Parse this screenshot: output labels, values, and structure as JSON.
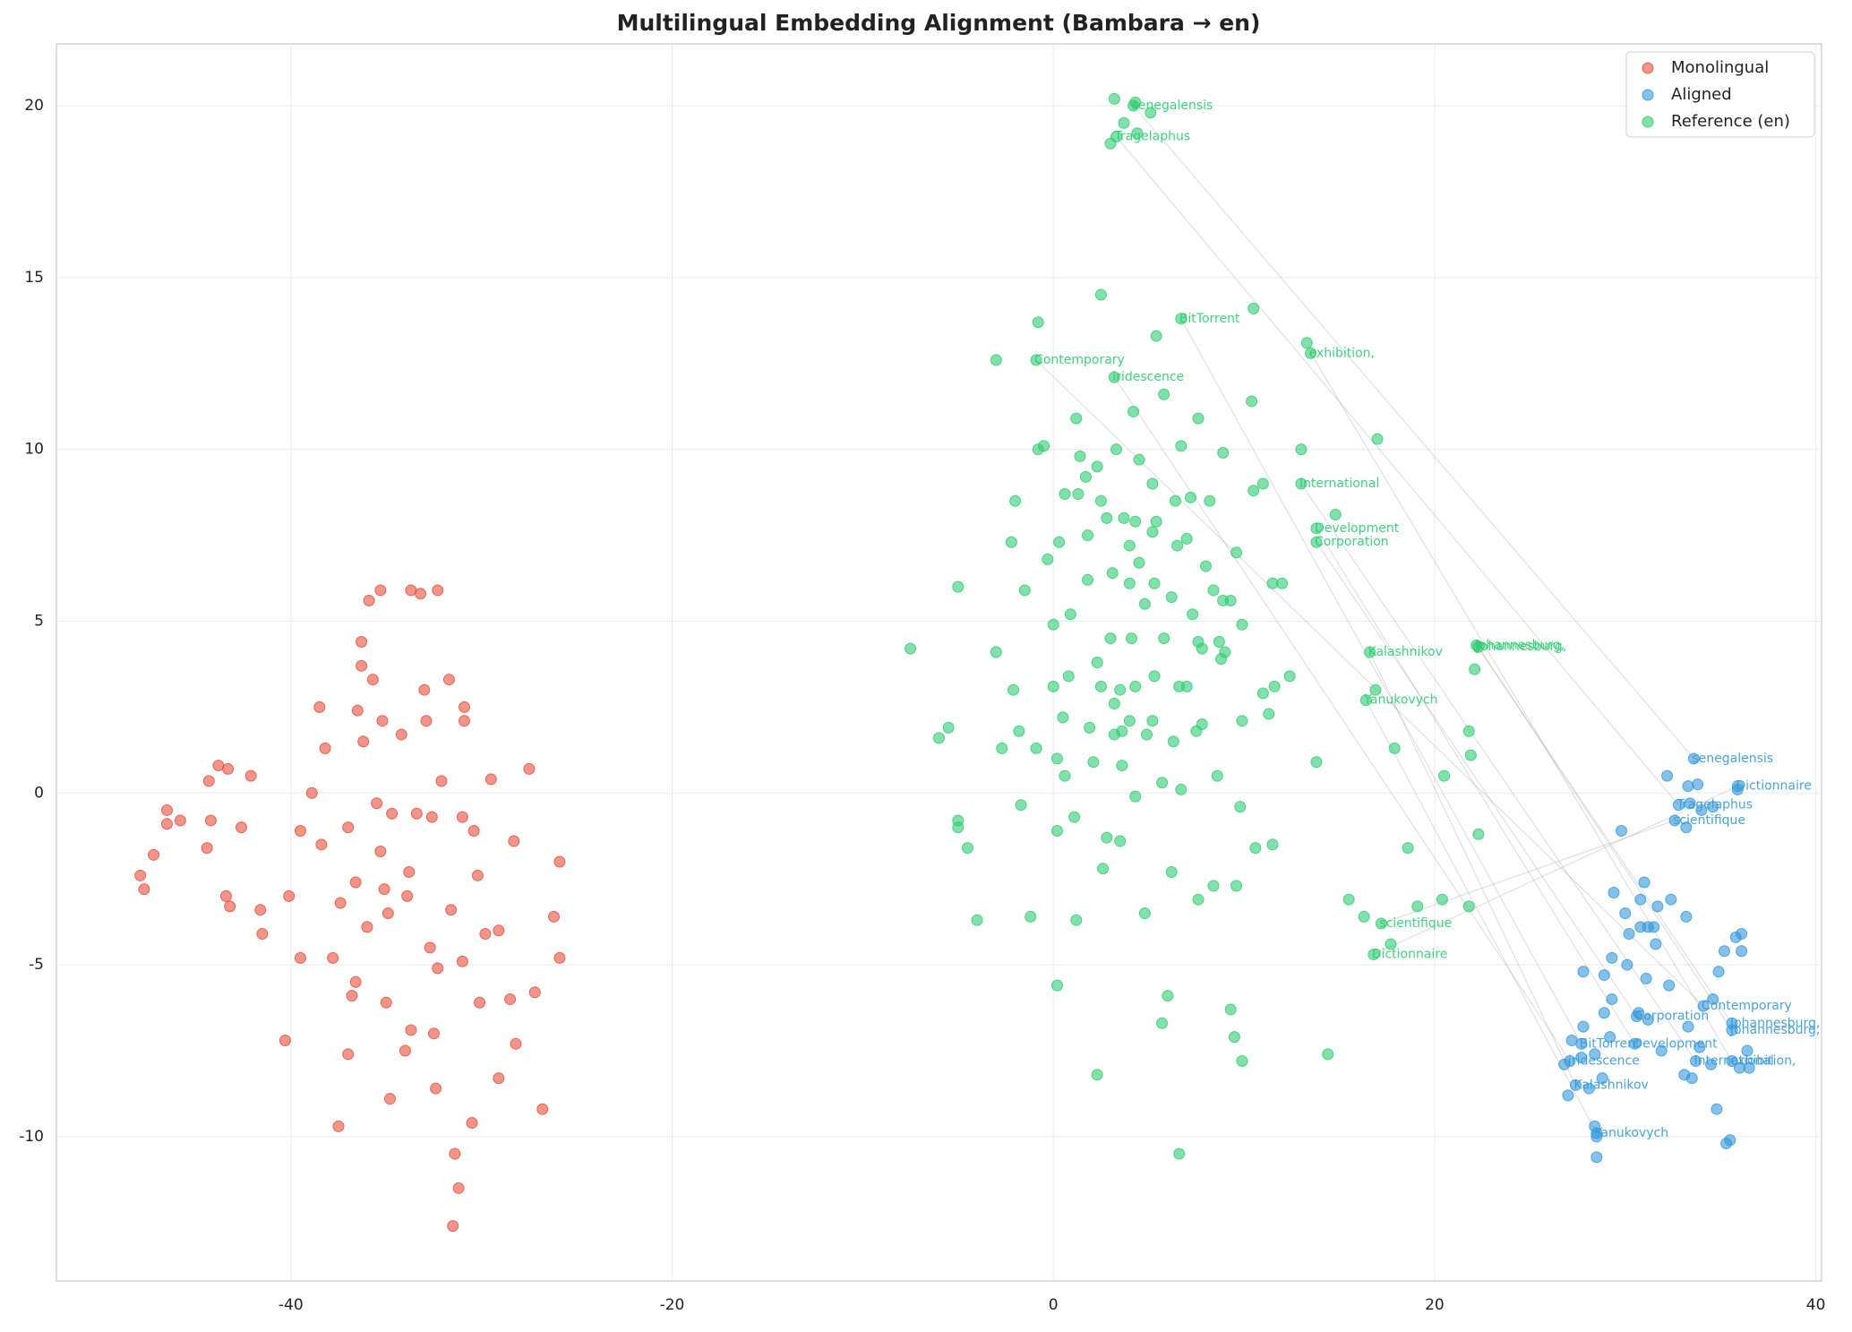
{
  "chart_data": {
    "type": "scatter",
    "title": "Multilingual Embedding Alignment (Bambara → en)",
    "xlim": [
      -52.3,
      40.3
    ],
    "ylim": [
      -14.2,
      21.8
    ],
    "xticks": [
      -40,
      -20,
      0,
      20,
      40
    ],
    "yticks": [
      -10,
      -5,
      0,
      5,
      10,
      15,
      20
    ],
    "grid": true,
    "legend": "upper right",
    "series": [
      {
        "name": "Monolingual",
        "color": "#e74c3c",
        "x": [
          -47.9,
          -47.7,
          -47.2,
          -46.5,
          -46.5,
          -45.8,
          -44.3,
          -43.8,
          -43.3,
          -44.4,
          -44.2,
          -43.4,
          -43.2,
          -42.6,
          -42.1,
          -41.6,
          -41.5,
          -40.3,
          -40.1,
          -39.5,
          -39.5,
          -38.9,
          -38.5,
          -38.2,
          -37.8,
          -37.4,
          -37.5,
          -37.0,
          -36.8,
          -36.6,
          -36.3,
          -36.3,
          -36.5,
          -36.2,
          -35.9,
          -35.7,
          -35.2,
          -35.3,
          -35.1,
          -35.0,
          -34.7,
          -34.8,
          -35.3,
          -34.2,
          -33.9,
          -33.7,
          -33.7,
          -33.2,
          -33.0,
          -32.9,
          -32.7,
          -32.5,
          -32.3,
          -32.1,
          -32.3,
          -31.7,
          -31.6,
          -31.4,
          -31.2,
          -31.5,
          -30.9,
          -30.9,
          -31.0,
          -30.5,
          -30.4,
          -30.1,
          -29.5,
          -29.1,
          -29.1,
          -28.5,
          -28.3,
          -27.5,
          -27.2,
          -26.8,
          -26.2,
          -25.9,
          -25.9,
          -33.4,
          -33.8,
          -35.5,
          -37.0,
          -36.0,
          -34.9,
          -32.6,
          -31.0,
          -29.8,
          -28.2,
          -30.2,
          -32.4,
          -34.0,
          -38.4,
          -36.6
        ],
        "y": [
          -2.4,
          -2.8,
          -1.8,
          -0.5,
          -0.9,
          -0.8,
          0.35,
          0.8,
          0.7,
          -1.6,
          -0.8,
          -3.0,
          -3.3,
          -1.0,
          0.5,
          -3.4,
          -4.1,
          -7.2,
          -3.0,
          -1.1,
          -4.8,
          0.0,
          2.5,
          1.3,
          -4.8,
          -3.2,
          -9.7,
          -7.6,
          -5.9,
          -5.5,
          4.4,
          3.7,
          2.4,
          1.5,
          5.6,
          3.3,
          2.1,
          -1.7,
          -2.8,
          -6.1,
          -0.6,
          -8.9,
          5.9,
          1.7,
          -3.0,
          -6.9,
          5.9,
          5.8,
          3.0,
          2.1,
          -4.5,
          -7.0,
          -5.1,
          0.35,
          5.9,
          3.3,
          -3.4,
          -10.5,
          -11.5,
          -12.6,
          2.1,
          2.5,
          -4.9,
          -9.6,
          -1.1,
          -6.1,
          0.4,
          -4.0,
          -8.3,
          -6.0,
          -1.4,
          0.7,
          -5.8,
          -9.2,
          -3.6,
          -2.0,
          -4.8,
          -0.6,
          -2.3,
          -0.3,
          -1.0,
          -3.9,
          -3.5,
          -0.7,
          -0.7,
          -4.1,
          -7.3,
          -2.4,
          -8.6,
          -7.5,
          -1.5,
          -2.6
        ]
      },
      {
        "name": "Aligned",
        "color": "#3498db",
        "x": [
          32.2,
          33.3,
          33.8,
          35.9,
          33.4,
          34.0,
          34.6,
          33.2,
          29.8,
          31.0,
          29.4,
          30.8,
          31.7,
          32.4,
          30.0,
          30.8,
          31.2,
          31.5,
          33.2,
          30.2,
          31.6,
          36.1,
          35.8,
          35.2,
          36.1,
          29.3,
          30.1,
          27.8,
          28.9,
          31.1,
          32.3,
          34.9,
          34.6,
          28.9,
          29.3,
          30.7,
          31.2,
          33.3,
          27.8,
          27.2,
          29.2,
          31.9,
          33.9,
          36.4,
          28.4,
          26.8,
          27.7,
          33.1,
          33.5,
          34.5,
          36.0,
          36.5,
          28.8,
          28.1,
          27.0,
          34.8,
          28.4,
          28.5,
          35.5,
          35.3,
          28.5
        ],
        "y": [
          0.5,
          0.2,
          0.25,
          0.1,
          -0.3,
          -0.5,
          -0.4,
          -1.0,
          -1.1,
          -2.6,
          -2.9,
          -3.1,
          -3.3,
          -3.1,
          -3.5,
          -3.9,
          -3.9,
          -3.9,
          -3.6,
          -4.1,
          -4.4,
          -4.1,
          -4.2,
          -4.6,
          -4.6,
          -4.8,
          -5.0,
          -5.2,
          -5.3,
          -5.4,
          -5.6,
          -5.2,
          -6.0,
          -6.4,
          -6.0,
          -6.4,
          -6.6,
          -6.8,
          -6.8,
          -7.2,
          -7.1,
          -7.5,
          -7.4,
          -7.5,
          -7.6,
          -7.9,
          -7.7,
          -8.2,
          -8.3,
          -7.9,
          -8.0,
          -8.0,
          -8.3,
          -8.6,
          -8.8,
          -9.2,
          -9.7,
          -10.0,
          -10.1,
          -10.2,
          -10.6
        ]
      },
      {
        "name": "Reference (en)",
        "color": "#2ecc71",
        "x": [
          3.2,
          4.3,
          5.1,
          3.7,
          4.4,
          3.0,
          2.5,
          10.5,
          -0.8,
          5.4,
          13.3,
          -3.0,
          5.8,
          4.2,
          10.4,
          -0.5,
          1.2,
          7.6,
          17.0,
          6.7,
          13.0,
          1.4,
          3.3,
          4.5,
          8.9,
          -0.8,
          2.3,
          1.7,
          5.2,
          11.0,
          10.5,
          0.6,
          1.3,
          -2.0,
          2.5,
          6.4,
          7.2,
          8.2,
          2.8,
          3.7,
          4.3,
          5.4,
          14.8,
          5.2,
          1.8,
          -2.2,
          0.3,
          4.0,
          6.5,
          7.0,
          9.6,
          -0.3,
          4.5,
          3.1,
          1.8,
          4.0,
          5.3,
          8.0,
          11.5,
          12.0,
          -5.0,
          -1.5,
          8.4,
          6.2,
          9.3,
          8.9,
          0.9,
          4.8,
          7.3,
          0.0,
          9.9,
          -7.5,
          -3.0,
          3.0,
          4.1,
          5.8,
          7.6,
          8.7,
          7.8,
          9.0,
          8.8,
          2.3,
          0.8,
          5.3,
          12.4,
          -2.1,
          0.0,
          2.5,
          3.5,
          4.3,
          6.6,
          7.0,
          11.6,
          11.0,
          16.9,
          22.1,
          3.2,
          11.3,
          9.9,
          4.0,
          5.2,
          7.8,
          0.5,
          -1.8,
          1.9,
          3.2,
          3.6,
          4.9,
          7.5,
          21.8,
          -5.5,
          -6.0,
          -2.7,
          -0.9,
          6.3,
          17.9,
          13.8,
          21.9,
          0.2,
          3.6,
          2.1,
          5.7,
          6.7,
          8.6,
          0.6,
          4.3,
          20.5,
          -1.7,
          -5.0,
          -5.0,
          1.1,
          9.8,
          0.2,
          2.8,
          3.5,
          10.6,
          11.5,
          22.3,
          -4.5,
          18.6,
          2.6,
          6.2,
          8.4,
          9.6,
          7.6,
          15.5,
          19.1,
          21.8,
          20.4,
          -4.0,
          -1.2,
          1.2,
          4.8,
          16.3,
          17.7,
          0.2,
          6.0,
          5.7,
          9.3,
          9.5,
          14.4,
          2.3,
          9.9,
          6.6
        ],
        "y": [
          20.2,
          20.1,
          19.8,
          19.5,
          19.2,
          18.9,
          14.5,
          14.1,
          13.7,
          13.3,
          13.1,
          12.6,
          11.6,
          11.1,
          11.4,
          10.1,
          10.9,
          10.9,
          10.3,
          10.1,
          10.0,
          9.8,
          10.0,
          9.7,
          9.9,
          10.0,
          9.5,
          9.2,
          9.0,
          9.0,
          8.8,
          8.7,
          8.7,
          8.5,
          8.5,
          8.5,
          8.6,
          8.5,
          8.0,
          8.0,
          7.9,
          7.9,
          8.1,
          7.6,
          7.5,
          7.3,
          7.3,
          7.2,
          7.2,
          7.4,
          7.0,
          6.8,
          6.7,
          6.4,
          6.2,
          6.1,
          6.1,
          6.6,
          6.1,
          6.1,
          6.0,
          5.9,
          5.9,
          5.7,
          5.6,
          5.6,
          5.2,
          5.5,
          5.2,
          4.9,
          4.9,
          4.2,
          4.1,
          4.5,
          4.5,
          4.5,
          4.4,
          4.4,
          4.2,
          4.1,
          3.9,
          3.8,
          3.4,
          3.4,
          3.4,
          3.0,
          3.1,
          3.1,
          3.0,
          3.1,
          3.1,
          3.1,
          3.1,
          2.9,
          3.0,
          3.6,
          2.6,
          2.3,
          2.1,
          2.1,
          2.1,
          2.0,
          2.2,
          1.8,
          1.9,
          1.7,
          1.8,
          1.7,
          1.8,
          1.8,
          1.9,
          1.6,
          1.3,
          1.3,
          1.5,
          1.3,
          0.9,
          1.1,
          1.0,
          0.8,
          0.9,
          0.3,
          0.1,
          0.5,
          0.5,
          -0.1,
          0.5,
          -0.35,
          -0.8,
          -1.0,
          -0.7,
          -0.4,
          -1.1,
          -1.3,
          -1.4,
          -1.6,
          -1.5,
          -1.2,
          -1.6,
          -1.6,
          -2.2,
          -2.3,
          -2.7,
          -2.7,
          -3.1,
          -3.1,
          -3.3,
          -3.3,
          -3.1,
          -3.7,
          -3.6,
          -3.7,
          -3.5,
          -3.6,
          -4.4,
          -5.6,
          -5.9,
          -6.7,
          -6.3,
          -7.1,
          -7.6,
          -8.2,
          -7.8,
          -10.5
        ]
      }
    ],
    "alignment_pairs": [
      {
        "label": "senegalensis",
        "reference_x": 4.2,
        "reference_y": 20.0,
        "aligned_x": 33.6,
        "aligned_y": 1.0
      },
      {
        "label": "Tragelaphus",
        "reference_x": 3.3,
        "reference_y": 19.1,
        "aligned_x": 32.8,
        "aligned_y": -0.35
      },
      {
        "label": "BitTorrent",
        "reference_x": 6.7,
        "reference_y": 13.8,
        "aligned_x": 27.7,
        "aligned_y": -7.3
      },
      {
        "label": "Contemporary",
        "reference_x": -0.9,
        "reference_y": 12.6,
        "aligned_x": 34.1,
        "aligned_y": -6.2
      },
      {
        "label": "exhibition,",
        "reference_x": 13.5,
        "reference_y": 12.8,
        "aligned_x": 35.6,
        "aligned_y": -7.8
      },
      {
        "label": "iridescence",
        "reference_x": 3.2,
        "reference_y": 12.1,
        "aligned_x": 27.1,
        "aligned_y": -7.8
      },
      {
        "label": "International",
        "reference_x": 13.0,
        "reference_y": 9.0,
        "aligned_x": 33.7,
        "aligned_y": -7.8
      },
      {
        "label": "Development",
        "reference_x": 13.8,
        "reference_y": 7.7,
        "aligned_x": 30.5,
        "aligned_y": -7.3
      },
      {
        "label": "Corporation",
        "reference_x": 13.8,
        "reference_y": 7.3,
        "aligned_x": 30.6,
        "aligned_y": -6.5
      },
      {
        "label": "Kalashnikov",
        "reference_x": 16.6,
        "reference_y": 4.1,
        "aligned_x": 27.4,
        "aligned_y": -8.5
      },
      {
        "label": "Johannesburg,",
        "reference_x": 22.2,
        "reference_y": 4.3,
        "aligned_x": 35.6,
        "aligned_y": -6.7
      },
      {
        "label": "Johannesburg,",
        "reference_x": 22.3,
        "reference_y": 4.25,
        "aligned_x": 35.6,
        "aligned_y": -6.9
      },
      {
        "label": "Yanukovych",
        "reference_x": 16.4,
        "reference_y": 2.7,
        "aligned_x": 28.5,
        "aligned_y": -9.9
      },
      {
        "label": "Dictionnaire",
        "reference_x": 16.8,
        "reference_y": -4.7,
        "aligned_x": 35.9,
        "aligned_y": 0.2
      },
      {
        "label": "scientifique",
        "reference_x": 17.2,
        "reference_y": -3.8,
        "aligned_x": 32.6,
        "aligned_y": -0.8
      }
    ]
  }
}
